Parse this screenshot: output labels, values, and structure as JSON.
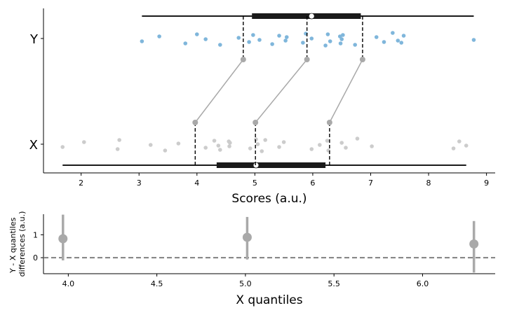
{
  "chart_data": [
    {
      "type": "scatter",
      "subtype": "shift-function raincloud",
      "xlabel": "Scores (a.u.)",
      "ylabel": "",
      "xlim": [
        1.35,
        9.15
      ],
      "xticks": [
        "2",
        "3",
        "4",
        "5",
        "6",
        "7",
        "8",
        "9"
      ],
      "categories": [
        "Y",
        "X"
      ],
      "colors": {
        "Y": "#7fb6db",
        "X": "#cccccc",
        "quantile": "#a9a9a9",
        "box": "#1a1a1a"
      },
      "series": [
        {
          "name": "Y",
          "x": [
            3.05,
            3.35,
            3.8,
            4.0,
            4.15,
            4.4,
            4.72,
            4.9,
            4.97,
            5.08,
            5.3,
            5.42,
            5.53,
            5.55,
            5.83,
            5.88,
            5.98,
            6.22,
            6.26,
            6.3,
            6.47,
            6.48,
            6.5,
            6.52,
            6.73,
            7.1,
            7.23,
            7.38,
            7.47,
            7.53,
            7.57,
            8.78
          ],
          "boxplot": {
            "whisker_low": 3.05,
            "q1": 4.95,
            "median": 5.98,
            "q3": 6.83,
            "whisker_high": 8.78
          }
        },
        {
          "name": "X",
          "x": [
            1.68,
            2.05,
            2.63,
            2.66,
            3.2,
            3.45,
            3.68,
            4.15,
            4.3,
            4.37,
            4.4,
            4.55,
            4.56,
            4.57,
            4.92,
            5.02,
            5.05,
            5.12,
            5.18,
            5.42,
            5.5,
            5.98,
            6.12,
            6.25,
            6.27,
            6.5,
            6.57,
            6.77,
            7.02,
            8.43,
            8.53,
            8.65
          ],
          "boxplot": {
            "whisker_low": 1.68,
            "q1": 4.34,
            "median": 5.02,
            "q3": 6.22,
            "whisker_high": 8.65
          }
        }
      ],
      "quantiles": {
        "X": [
          3.97,
          5.01,
          6.29
        ],
        "Y": [
          4.8,
          5.9,
          6.86
        ]
      }
    },
    {
      "type": "scatter",
      "subtype": "errorbar",
      "xlabel": "X quantiles",
      "ylabel": "Y - X quantiles\ndifferences (a.u.)",
      "xlim": [
        3.86,
        6.41
      ],
      "ylim": [
        -0.7,
        1.9
      ],
      "xticks": [
        "4.0",
        "4.5",
        "5.0",
        "5.5",
        "6.0"
      ],
      "yticks": [
        "0",
        "1"
      ],
      "reference_line": 0,
      "x": [
        3.97,
        5.01,
        6.29
      ],
      "y": [
        0.83,
        0.89,
        0.6
      ],
      "ci_low": [
        -0.12,
        -0.08,
        -0.65
      ],
      "ci_high": [
        1.88,
        1.78,
        1.6
      ]
    }
  ]
}
